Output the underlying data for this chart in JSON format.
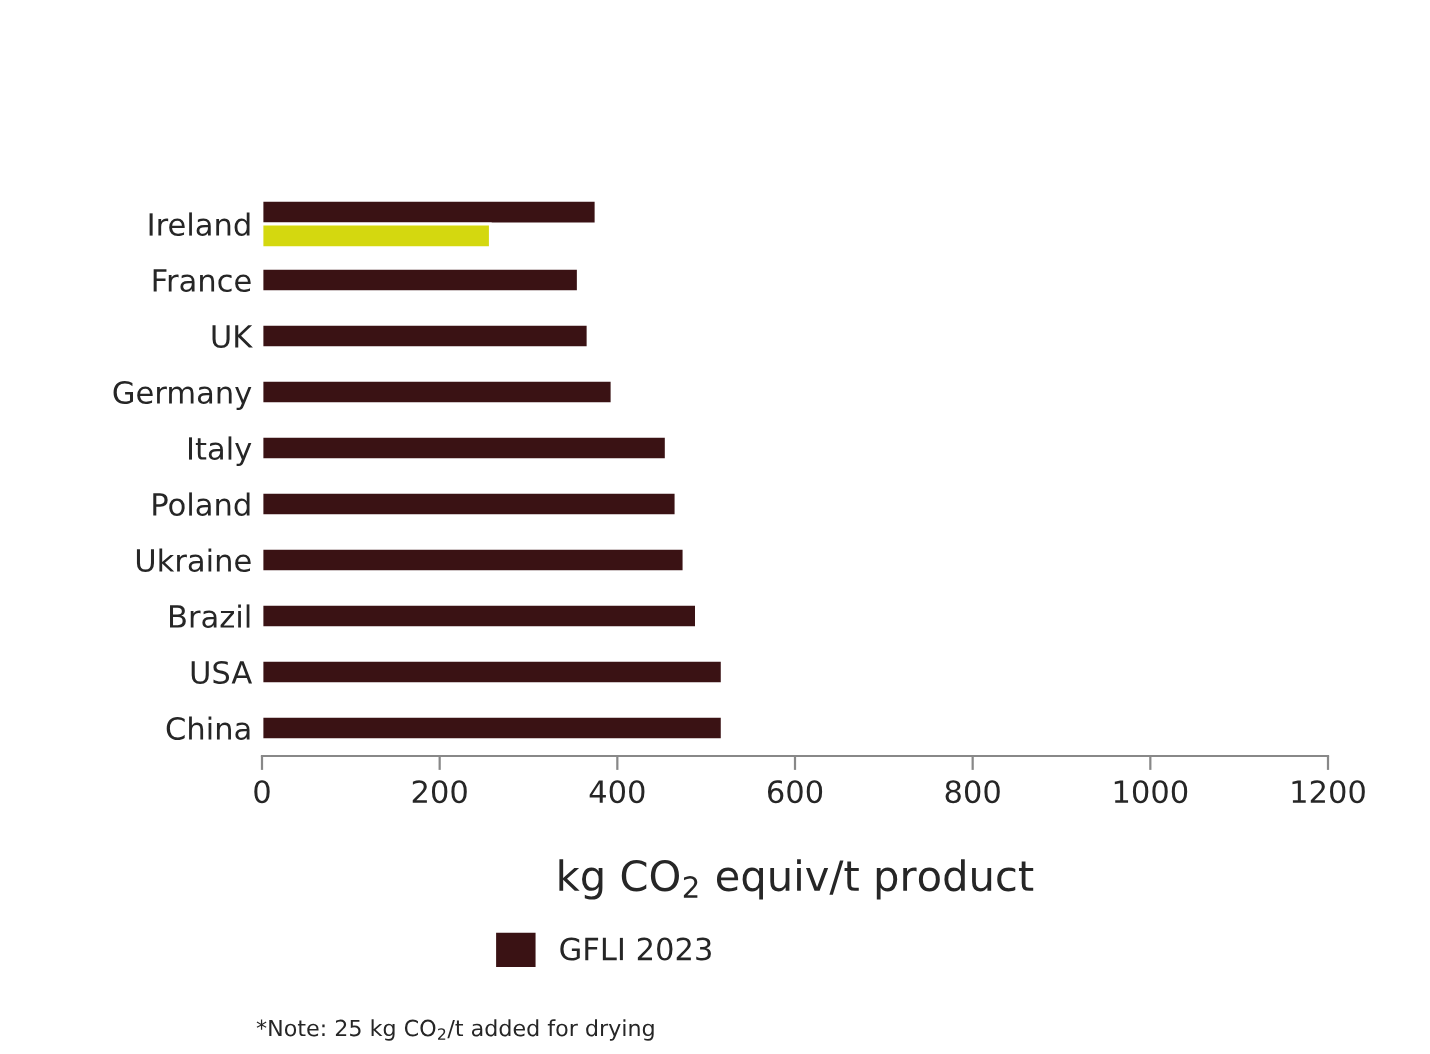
{
  "chart_data": {
    "type": "bar",
    "orientation": "horizontal",
    "categories": [
      "Ireland",
      "France",
      "UK",
      "Germany",
      "Italy",
      "Poland",
      "Ukraine",
      "Brazil",
      "USA",
      "China"
    ],
    "series": [
      {
        "name": "GFLI 2023",
        "color": "#3a1214",
        "values": [
          376,
          356,
          367,
          394,
          455,
          466,
          475,
          489,
          518,
          518
        ]
      },
      {
        "color": "#d4d80f",
        "values": [
          257,
          null,
          null,
          null,
          null,
          null,
          null,
          null,
          null,
          null
        ]
      }
    ],
    "xlim": [
      0,
      1200
    ],
    "xticks": [
      0,
      200,
      400,
      600,
      800,
      1000,
      1200
    ],
    "xlabel": "kg CO$_{2}$ equiv/t product",
    "annotations": [
      "*Note: 25 kg CO$_{2}$/t added for drying"
    ],
    "grid": false,
    "legend": "bottom"
  }
}
